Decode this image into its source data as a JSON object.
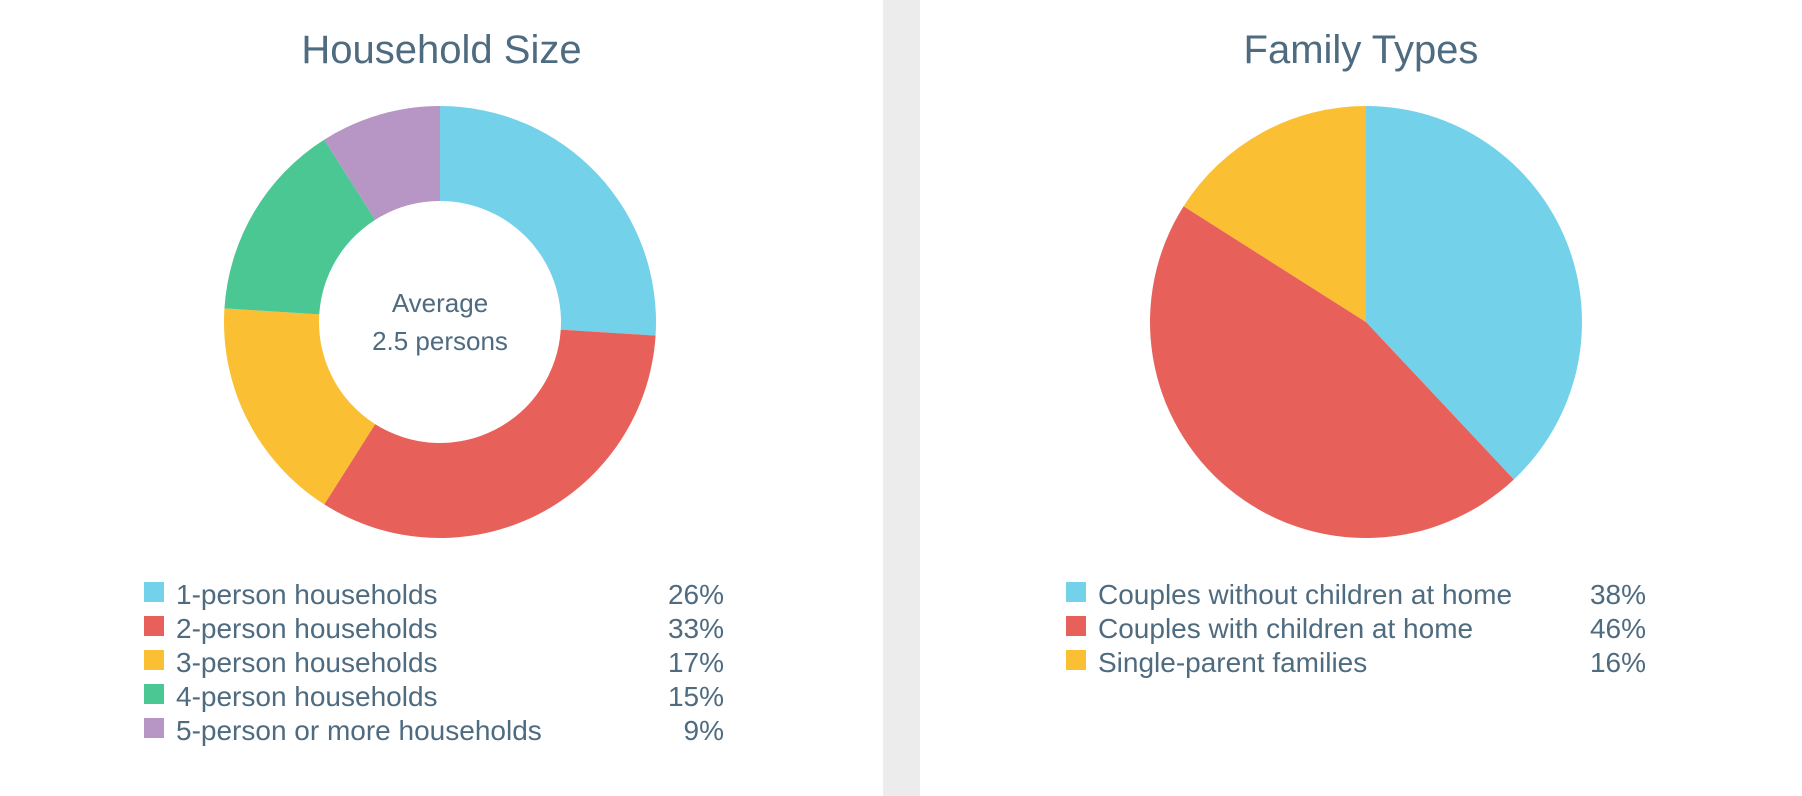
{
  "chart_data": [
    {
      "type": "pie",
      "title": "Household Size",
      "donut": true,
      "center_text": [
        "Average",
        "2.5 persons"
      ],
      "categories": [
        "1-person households",
        "2-person households",
        "3-person households",
        "4-person households",
        "5-person or more households"
      ],
      "values": [
        26,
        33,
        17,
        15,
        9
      ],
      "value_labels": [
        "26%",
        "33%",
        "17%",
        "15%",
        "9%"
      ],
      "colors": [
        "#74d1ea",
        "#e8605a",
        "#fbbf33",
        "#4bc794",
        "#b795c4"
      ],
      "legend": "bottom"
    },
    {
      "type": "pie",
      "title": "Family Types",
      "donut": false,
      "categories": [
        "Couples without children at home",
        "Couples with children at home",
        "Single-parent families"
      ],
      "values": [
        38,
        46,
        16
      ],
      "value_labels": [
        "38%",
        "46%",
        "16%"
      ],
      "colors": [
        "#74d1ea",
        "#e8605a",
        "#fbbf33"
      ],
      "legend": "bottom"
    }
  ]
}
